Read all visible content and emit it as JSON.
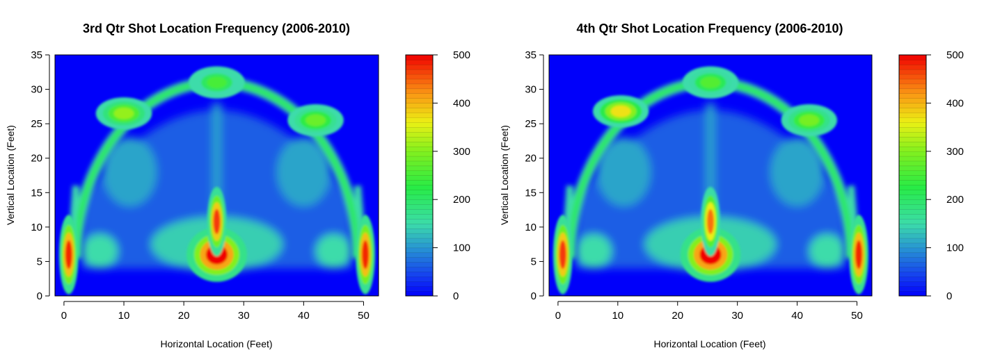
{
  "chart_data": [
    {
      "type": "heatmap",
      "title": "3rd Qtr Shot Location Frequency (2006-2010)",
      "xlabel": "Horizontal Location (Feet)",
      "ylabel": "Vertical Location (Feet)",
      "xlim": [
        -1.5,
        52.5
      ],
      "ylim": [
        0,
        35
      ],
      "xticks": [
        0,
        10,
        20,
        30,
        40,
        50
      ],
      "yticks": [
        0,
        5,
        10,
        15,
        20,
        25,
        30,
        35
      ],
      "colorbar": {
        "range": [
          0,
          500
        ],
        "ticks": [
          0,
          100,
          200,
          300,
          400,
          500
        ]
      },
      "hotspots": [
        {
          "name": "restricted-area",
          "x": 25.5,
          "y": 6,
          "value": 500
        },
        {
          "name": "paint-spot",
          "x": 25.5,
          "y": 10.8,
          "value": 470
        },
        {
          "name": "left-corner",
          "x": 0.8,
          "y": 6,
          "value": 480
        },
        {
          "name": "right-corner",
          "x": 50.3,
          "y": 6,
          "value": 480
        },
        {
          "name": "left-wing-three",
          "x": 10,
          "y": 26.5,
          "value": 310
        },
        {
          "name": "right-wing-three",
          "x": 42,
          "y": 25.5,
          "value": 280
        },
        {
          "name": "top-of-key-three",
          "x": 25.5,
          "y": 31,
          "value": 250
        }
      ]
    },
    {
      "type": "heatmap",
      "title": "4th Qtr Shot Location Frequency (2006-2010)",
      "xlabel": "Horizontal Location (Feet)",
      "ylabel": "Vertical Location (Feet)",
      "xlim": [
        -1.5,
        52.5
      ],
      "ylim": [
        0,
        35
      ],
      "xticks": [
        0,
        10,
        20,
        30,
        40,
        50
      ],
      "yticks": [
        0,
        5,
        10,
        15,
        20,
        25,
        30,
        35
      ],
      "colorbar": {
        "range": [
          0,
          500
        ],
        "ticks": [
          0,
          100,
          200,
          300,
          400,
          500
        ]
      },
      "hotspots": [
        {
          "name": "restricted-area",
          "x": 25.5,
          "y": 6,
          "value": 500
        },
        {
          "name": "paint-spot",
          "x": 25.5,
          "y": 10.8,
          "value": 440
        },
        {
          "name": "left-corner",
          "x": 0.8,
          "y": 6,
          "value": 470
        },
        {
          "name": "right-corner",
          "x": 50.3,
          "y": 6,
          "value": 480
        },
        {
          "name": "left-wing-three",
          "x": 10.5,
          "y": 26.8,
          "value": 370
        },
        {
          "name": "right-wing-three",
          "x": 42,
          "y": 25.5,
          "value": 290
        },
        {
          "name": "top-of-key-three",
          "x": 25.5,
          "y": 31,
          "value": 260
        }
      ]
    }
  ]
}
